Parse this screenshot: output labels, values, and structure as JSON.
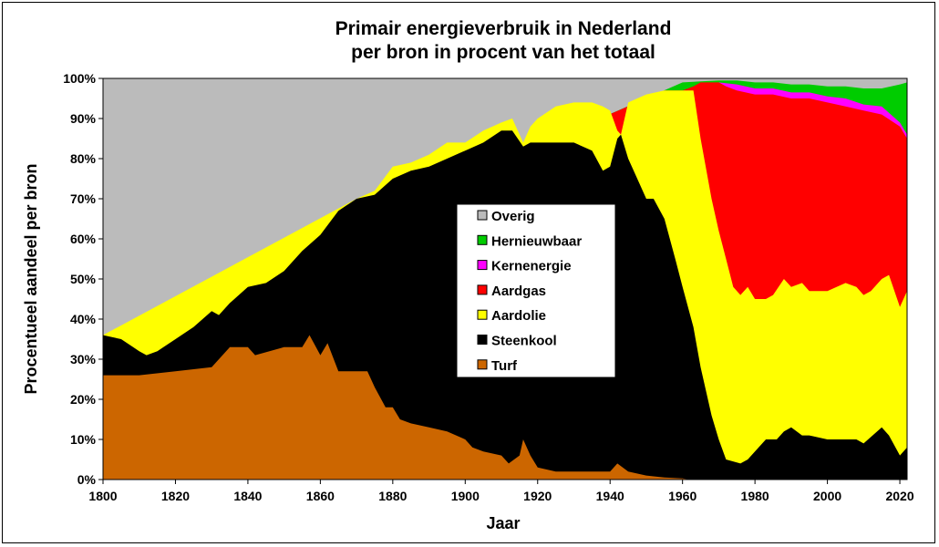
{
  "chart_data": {
    "type": "area",
    "stacked": true,
    "title_line1": "Primair energieverbruik in Nederland",
    "title_line2": "per bron in procent van het totaal",
    "xlabel": "Jaar",
    "ylabel": "Procentueel aandeel per bron",
    "xlim": [
      1800,
      2022
    ],
    "ylim": [
      0,
      100
    ],
    "x_ticks": [
      1800,
      1820,
      1840,
      1860,
      1880,
      1900,
      1920,
      1940,
      1960,
      1980,
      2000,
      2020
    ],
    "y_ticks": [
      "0%",
      "10%",
      "20%",
      "30%",
      "40%",
      "50%",
      "60%",
      "70%",
      "80%",
      "90%",
      "100%"
    ],
    "grid": false,
    "legend_position": "center",
    "legend_order": [
      "Overig",
      "Hernieuwbaar",
      "Kernenergie",
      "Aardgas",
      "Aardolie",
      "Steenkool",
      "Turf"
    ],
    "series": [
      {
        "name": "Turf",
        "color": "#cc6600",
        "points": [
          [
            1800,
            26
          ],
          [
            1805,
            26
          ],
          [
            1810,
            26
          ],
          [
            1820,
            27
          ],
          [
            1830,
            28
          ],
          [
            1835,
            33
          ],
          [
            1840,
            33
          ],
          [
            1842,
            31
          ],
          [
            1850,
            33
          ],
          [
            1855,
            33
          ],
          [
            1857,
            36
          ],
          [
            1860,
            31
          ],
          [
            1862,
            34
          ],
          [
            1865,
            27
          ],
          [
            1870,
            27
          ],
          [
            1873,
            27
          ],
          [
            1875,
            23
          ],
          [
            1878,
            18
          ],
          [
            1880,
            18
          ],
          [
            1882,
            15
          ],
          [
            1885,
            14
          ],
          [
            1890,
            13
          ],
          [
            1895,
            12
          ],
          [
            1900,
            10
          ],
          [
            1902,
            8
          ],
          [
            1905,
            7
          ],
          [
            1910,
            6
          ],
          [
            1912,
            4
          ],
          [
            1915,
            6
          ],
          [
            1916,
            10
          ],
          [
            1918,
            6
          ],
          [
            1920,
            3
          ],
          [
            1925,
            2
          ],
          [
            1930,
            2
          ],
          [
            1935,
            2
          ],
          [
            1940,
            2
          ],
          [
            1942,
            4
          ],
          [
            1945,
            2
          ],
          [
            1950,
            1
          ],
          [
            1955,
            0.5
          ],
          [
            1960,
            0.3
          ],
          [
            1962,
            0
          ],
          [
            2022,
            0
          ]
        ]
      },
      {
        "name": "Steenkool",
        "color": "#000000",
        "points": [
          [
            1800,
            36
          ],
          [
            1805,
            35
          ],
          [
            1810,
            32
          ],
          [
            1812,
            31
          ],
          [
            1815,
            32
          ],
          [
            1820,
            35
          ],
          [
            1825,
            38
          ],
          [
            1830,
            42
          ],
          [
            1832,
            41
          ],
          [
            1835,
            44
          ],
          [
            1840,
            48
          ],
          [
            1845,
            49
          ],
          [
            1850,
            52
          ],
          [
            1855,
            57
          ],
          [
            1860,
            61
          ],
          [
            1865,
            67
          ],
          [
            1870,
            70
          ],
          [
            1875,
            71
          ],
          [
            1880,
            75
          ],
          [
            1885,
            77
          ],
          [
            1890,
            78
          ],
          [
            1895,
            80
          ],
          [
            1900,
            82
          ],
          [
            1905,
            84
          ],
          [
            1910,
            87
          ],
          [
            1913,
            87
          ],
          [
            1916,
            83
          ],
          [
            1918,
            84
          ],
          [
            1920,
            84
          ],
          [
            1925,
            84
          ],
          [
            1930,
            84
          ],
          [
            1935,
            82
          ],
          [
            1938,
            77
          ],
          [
            1940,
            78
          ],
          [
            1942,
            85
          ],
          [
            1943,
            86
          ],
          [
            1945,
            80
          ],
          [
            1948,
            74
          ],
          [
            1950,
            70
          ],
          [
            1952,
            70
          ],
          [
            1955,
            65
          ],
          [
            1958,
            55
          ],
          [
            1960,
            48
          ],
          [
            1963,
            38
          ],
          [
            1965,
            28
          ],
          [
            1968,
            16
          ],
          [
            1970,
            10
          ],
          [
            1972,
            5
          ],
          [
            1976,
            4
          ],
          [
            1978,
            5
          ],
          [
            1980,
            7
          ],
          [
            1983,
            10
          ],
          [
            1986,
            10
          ],
          [
            1988,
            12
          ],
          [
            1990,
            13
          ],
          [
            1993,
            11
          ],
          [
            1995,
            11
          ],
          [
            2000,
            10
          ],
          [
            2005,
            10
          ],
          [
            2008,
            10
          ],
          [
            2010,
            9
          ],
          [
            2015,
            13
          ],
          [
            2017,
            11
          ],
          [
            2020,
            6
          ],
          [
            2022,
            8
          ]
        ]
      },
      {
        "name": "Aardolie",
        "color": "#ffff00",
        "points": [
          [
            1800,
            36
          ],
          [
            1870,
            70
          ],
          [
            1875,
            72
          ],
          [
            1880,
            78
          ],
          [
            1885,
            79
          ],
          [
            1890,
            81
          ],
          [
            1895,
            84
          ],
          [
            1900,
            84
          ],
          [
            1905,
            87
          ],
          [
            1910,
            89
          ],
          [
            1913,
            90
          ],
          [
            1916,
            84
          ],
          [
            1918,
            88
          ],
          [
            1920,
            90
          ],
          [
            1925,
            93
          ],
          [
            1930,
            94
          ],
          [
            1935,
            94
          ],
          [
            1938,
            93
          ],
          [
            1940,
            92
          ],
          [
            1942,
            87
          ],
          [
            1943,
            86
          ],
          [
            1945,
            94
          ],
          [
            1950,
            96
          ],
          [
            1955,
            97
          ],
          [
            1960,
            97
          ],
          [
            1963,
            97
          ],
          [
            1965,
            85
          ],
          [
            1968,
            70
          ],
          [
            1970,
            62
          ],
          [
            1972,
            55
          ],
          [
            1974,
            48
          ],
          [
            1976,
            46
          ],
          [
            1978,
            48
          ],
          [
            1980,
            45
          ],
          [
            1983,
            45
          ],
          [
            1985,
            46
          ],
          [
            1988,
            50
          ],
          [
            1990,
            48
          ],
          [
            1993,
            49
          ],
          [
            1995,
            47
          ],
          [
            2000,
            47
          ],
          [
            2005,
            49
          ],
          [
            2008,
            48
          ],
          [
            2010,
            46
          ],
          [
            2012,
            47
          ],
          [
            2015,
            50
          ],
          [
            2017,
            51
          ],
          [
            2020,
            43
          ],
          [
            2022,
            47
          ]
        ]
      },
      {
        "name": "Aardgas",
        "color": "#ff0000",
        "points": [
          [
            1800,
            36
          ],
          [
            1955,
            97
          ],
          [
            1960,
            97
          ],
          [
            1963,
            98
          ],
          [
            1965,
            99
          ],
          [
            1970,
            99
          ],
          [
            1972,
            98
          ],
          [
            1975,
            97
          ],
          [
            1980,
            96
          ],
          [
            1985,
            96
          ],
          [
            1990,
            95
          ],
          [
            1995,
            95
          ],
          [
            2000,
            94
          ],
          [
            2005,
            93
          ],
          [
            2010,
            92
          ],
          [
            2015,
            91
          ],
          [
            2020,
            88
          ],
          [
            2022,
            85
          ]
        ]
      },
      {
        "name": "Kernenergie",
        "color": "#ff00ff",
        "points": [
          [
            1800,
            36
          ],
          [
            1970,
            99
          ],
          [
            1975,
            98.5
          ],
          [
            1980,
            97.5
          ],
          [
            1985,
            97.5
          ],
          [
            1990,
            96.5
          ],
          [
            1995,
            96.5
          ],
          [
            2000,
            95.5
          ],
          [
            2005,
            95
          ],
          [
            2010,
            93.5
          ],
          [
            2015,
            93
          ],
          [
            2020,
            89
          ],
          [
            2022,
            86
          ]
        ]
      },
      {
        "name": "Hernieuwbaar",
        "color": "#00cc00",
        "points": [
          [
            1800,
            36
          ],
          [
            1960,
            99
          ],
          [
            1970,
            99.5
          ],
          [
            1975,
            99.5
          ],
          [
            1980,
            99
          ],
          [
            1985,
            99
          ],
          [
            1990,
            98.5
          ],
          [
            1995,
            98.5
          ],
          [
            2000,
            98
          ],
          [
            2005,
            98
          ],
          [
            2010,
            97.5
          ],
          [
            2015,
            97.5
          ],
          [
            2020,
            98.5
          ],
          [
            2022,
            99
          ]
        ]
      },
      {
        "name": "Overig",
        "color": "#bbbbbb",
        "points": [
          [
            1800,
            100
          ],
          [
            2022,
            100
          ]
        ]
      }
    ]
  }
}
